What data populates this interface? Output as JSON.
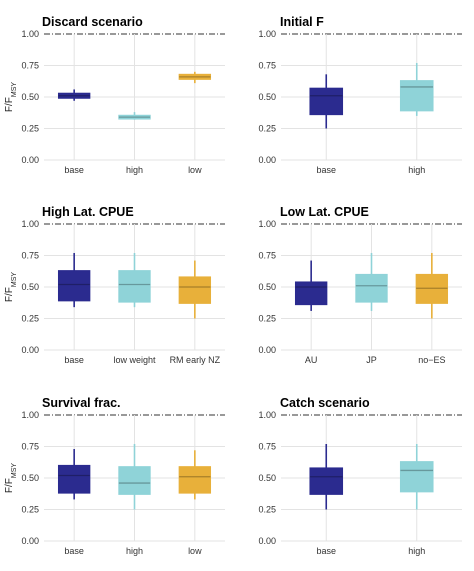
{
  "colors": {
    "dark_blue": "#2b2b8f",
    "light_teal": "#8fd3d8",
    "gold": "#e8b03a",
    "grid": "#e3e3e3",
    "reference_line": "#333333"
  },
  "shared": {
    "ylabel": "F/F",
    "ylabel_subscript": "MSY",
    "yticks": [
      "0.00",
      "0.25",
      "0.50",
      "0.75",
      "1.00"
    ],
    "reference_line_value": 1.0
  },
  "chart_data": [
    {
      "type": "box",
      "title": "Discard scenario",
      "ylim": [
        0,
        1
      ],
      "reference_line": 1.0,
      "categories": [
        "base",
        "high",
        "low"
      ],
      "colors": [
        "dark_blue",
        "light_teal",
        "gold"
      ],
      "boxes": [
        {
          "whisker_low": 0.47,
          "q1": 0.49,
          "median": 0.51,
          "q3": 0.53,
          "whisker_high": 0.56
        },
        {
          "whisker_low": 0.32,
          "q1": 0.325,
          "median": 0.34,
          "q3": 0.355,
          "whisker_high": 0.38
        },
        {
          "whisker_low": 0.61,
          "q1": 0.64,
          "median": 0.66,
          "q3": 0.68,
          "whisker_high": 0.7
        }
      ]
    },
    {
      "type": "box",
      "title": "Initial F",
      "ylim": [
        0,
        1
      ],
      "reference_line": 1.0,
      "categories": [
        "base",
        "high"
      ],
      "colors": [
        "dark_blue",
        "light_teal"
      ],
      "boxes": [
        {
          "whisker_low": 0.25,
          "q1": 0.36,
          "median": 0.51,
          "q3": 0.57,
          "whisker_high": 0.68
        },
        {
          "whisker_low": 0.35,
          "q1": 0.39,
          "median": 0.58,
          "q3": 0.63,
          "whisker_high": 0.77
        }
      ]
    },
    {
      "type": "box",
      "title": "High Lat. CPUE",
      "ylim": [
        0,
        1
      ],
      "reference_line": 1.0,
      "categories": [
        "base",
        "low weight",
        "RM early NZ"
      ],
      "colors": [
        "dark_blue",
        "light_teal",
        "gold"
      ],
      "boxes": [
        {
          "whisker_low": 0.34,
          "q1": 0.39,
          "median": 0.52,
          "q3": 0.63,
          "whisker_high": 0.77
        },
        {
          "whisker_low": 0.34,
          "q1": 0.38,
          "median": 0.52,
          "q3": 0.63,
          "whisker_high": 0.77
        },
        {
          "whisker_low": 0.25,
          "q1": 0.37,
          "median": 0.5,
          "q3": 0.58,
          "whisker_high": 0.71
        }
      ]
    },
    {
      "type": "box",
      "title": "Low Lat. CPUE",
      "ylim": [
        0,
        1
      ],
      "reference_line": 1.0,
      "categories": [
        "AU",
        "JP",
        "no−ES"
      ],
      "colors": [
        "dark_blue",
        "light_teal",
        "gold"
      ],
      "boxes": [
        {
          "whisker_low": 0.31,
          "q1": 0.36,
          "median": 0.5,
          "q3": 0.54,
          "whisker_high": 0.71
        },
        {
          "whisker_low": 0.31,
          "q1": 0.38,
          "median": 0.51,
          "q3": 0.6,
          "whisker_high": 0.77
        },
        {
          "whisker_low": 0.25,
          "q1": 0.37,
          "median": 0.49,
          "q3": 0.6,
          "whisker_high": 0.77
        }
      ]
    },
    {
      "type": "box",
      "title": "Survival frac.",
      "ylim": [
        0,
        1
      ],
      "reference_line": 1.0,
      "categories": [
        "base",
        "high",
        "low"
      ],
      "colors": [
        "dark_blue",
        "light_teal",
        "gold"
      ],
      "boxes": [
        {
          "whisker_low": 0.33,
          "q1": 0.38,
          "median": 0.52,
          "q3": 0.6,
          "whisker_high": 0.73
        },
        {
          "whisker_low": 0.25,
          "q1": 0.37,
          "median": 0.46,
          "q3": 0.59,
          "whisker_high": 0.77
        },
        {
          "whisker_low": 0.33,
          "q1": 0.38,
          "median": 0.51,
          "q3": 0.59,
          "whisker_high": 0.72
        }
      ]
    },
    {
      "type": "box",
      "title": "Catch scenario",
      "ylim": [
        0,
        1
      ],
      "reference_line": 1.0,
      "categories": [
        "base",
        "high"
      ],
      "colors": [
        "dark_blue",
        "light_teal"
      ],
      "boxes": [
        {
          "whisker_low": 0.25,
          "q1": 0.37,
          "median": 0.51,
          "q3": 0.58,
          "whisker_high": 0.77
        },
        {
          "whisker_low": 0.25,
          "q1": 0.39,
          "median": 0.56,
          "q3": 0.63,
          "whisker_high": 0.77
        }
      ]
    }
  ]
}
